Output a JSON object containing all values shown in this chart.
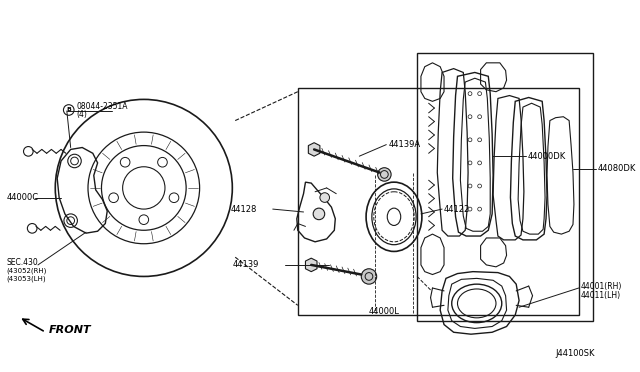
{
  "bg_color": "#ffffff",
  "line_color": "#1a1a1a",
  "diagram_id": "J44100SK",
  "labels": {
    "bolt_label": "08044-2351A",
    "bolt_label2": "(4)",
    "part_44000C": "44000C",
    "sec_430_1": "SEC.430",
    "sec_430_2": "(43052(RH)",
    "sec_430_3": "(43053(LH)",
    "part_44139A": "44139A",
    "part_44128": "44128",
    "part_44139": "44139",
    "part_44122": "44122",
    "part_44000L": "44000L",
    "part_44000DK": "44000DK",
    "part_44080DK": "44080DK",
    "part_44001a": "44001(RH)",
    "part_44001b": "44011(LH)",
    "front_label": "FRONT"
  },
  "figsize": [
    6.4,
    3.72
  ],
  "dpi": 100
}
